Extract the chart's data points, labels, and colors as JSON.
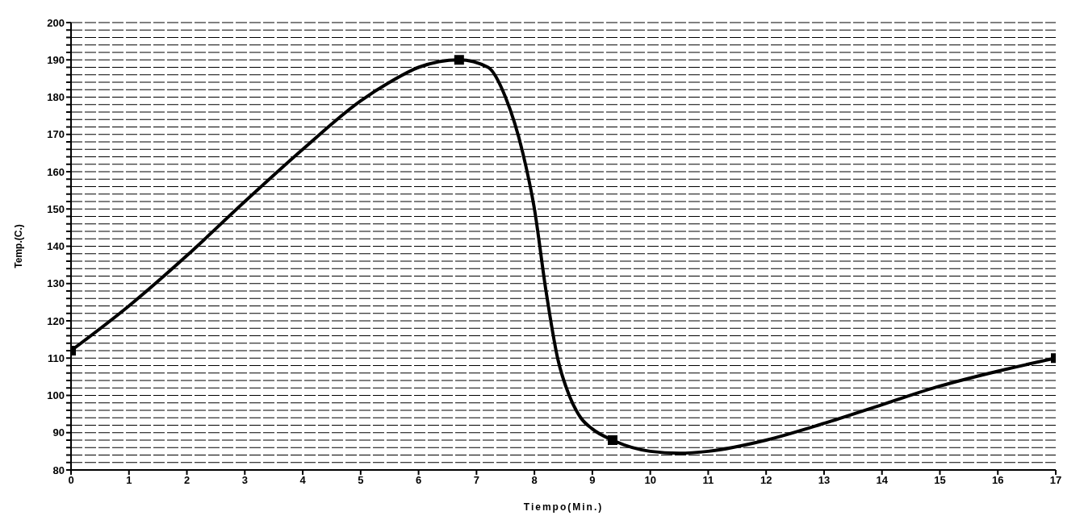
{
  "chart_data": {
    "type": "line",
    "xlabel": "Tiempo(Min.)",
    "ylabel": "Temp.(C.)",
    "xlim": [
      0,
      17
    ],
    "ylim": [
      80,
      200
    ],
    "xticks": [
      0,
      1,
      2,
      3,
      4,
      5,
      6,
      7,
      8,
      9,
      10,
      11,
      12,
      13,
      14,
      15,
      16,
      17
    ],
    "yticks": [
      80,
      {
        "value": 82,
        "label": null
      },
      {
        "value": 84,
        "label": null
      },
      {
        "value": 86,
        "label": null
      },
      {
        "value": 88,
        "label": null
      },
      90,
      {
        "value": 92,
        "label": null
      },
      {
        "value": 94,
        "label": null
      },
      {
        "value": 96,
        "label": null
      },
      {
        "value": 98,
        "label": null
      },
      100,
      {
        "value": 102,
        "label": null
      },
      {
        "value": 104,
        "label": null
      },
      {
        "value": 106,
        "label": null
      },
      {
        "value": 108,
        "label": null
      },
      110,
      {
        "value": 112,
        "label": null
      },
      {
        "value": 114,
        "label": null
      },
      {
        "value": 116,
        "label": null
      },
      {
        "value": 118,
        "label": null
      },
      120,
      {
        "value": 122,
        "label": null
      },
      {
        "value": 124,
        "label": null
      },
      {
        "value": 126,
        "label": null
      },
      {
        "value": 128,
        "label": null
      },
      130,
      {
        "value": 132,
        "label": null
      },
      {
        "value": 134,
        "label": null
      },
      {
        "value": 136,
        "label": null
      },
      {
        "value": 138,
        "label": null
      },
      140,
      {
        "value": 142,
        "label": null
      },
      {
        "value": 144,
        "label": null
      },
      {
        "value": 146,
        "label": null
      },
      {
        "value": 148,
        "label": null
      },
      150,
      {
        "value": 152,
        "label": null
      },
      {
        "value": 154,
        "label": null
      },
      {
        "value": 156,
        "label": null
      },
      {
        "value": 158,
        "label": null
      },
      160,
      {
        "value": 162,
        "label": null
      },
      {
        "value": 164,
        "label": null
      },
      {
        "value": 166,
        "label": null
      },
      {
        "value": 168,
        "label": null
      },
      170,
      {
        "value": 172,
        "label": null
      },
      {
        "value": 174,
        "label": null
      },
      {
        "value": 176,
        "label": null
      },
      {
        "value": 178,
        "label": null
      },
      180,
      {
        "value": 182,
        "label": null
      },
      {
        "value": 184,
        "label": null
      },
      {
        "value": 186,
        "label": null
      },
      {
        "value": 188,
        "label": null
      },
      190,
      {
        "value": 192,
        "label": null
      },
      {
        "value": 194,
        "label": null
      },
      {
        "value": 196,
        "label": null
      },
      {
        "value": 198,
        "label": null
      },
      200
    ],
    "grid": "y",
    "series": [
      {
        "color": "#000000",
        "marker": "none",
        "x": [
          0,
          1,
          2,
          3,
          4,
          5,
          5.5,
          6,
          6.7,
          7.2,
          7.5,
          7.8,
          8,
          8.2,
          8.4,
          8.6,
          8.8,
          9,
          9.35,
          10,
          10.5,
          11,
          12,
          13,
          14,
          15,
          16,
          17
        ],
        "values": [
          112,
          124,
          137.5,
          152,
          166,
          179,
          184,
          188,
          190,
          188,
          180,
          165,
          150,
          128,
          110,
          100,
          94,
          91,
          88,
          85,
          84.5,
          85,
          88,
          92.5,
          97.5,
          102.5,
          106.5,
          110
        ]
      },
      {
        "type": "scatter",
        "color": "#000000",
        "marker": "square",
        "x": [
          0,
          6.7,
          9.35,
          17
        ],
        "values": [
          112,
          190,
          88,
          110
        ]
      }
    ]
  }
}
